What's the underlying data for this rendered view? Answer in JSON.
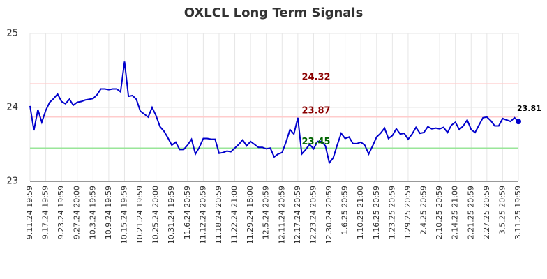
{
  "chart_data": {
    "type": "line",
    "title": "OXLCL Long Term Signals",
    "categories": [
      "9.11.24 19:59",
      null,
      null,
      null,
      "9.17.24 19:59",
      null,
      null,
      null,
      "9.23.24 19:59",
      null,
      null,
      null,
      "9.27.24 20:00",
      null,
      null,
      null,
      "10.3.24 19:59",
      null,
      null,
      null,
      "10.9.24 19:59",
      null,
      null,
      null,
      "10.15.24 19:59",
      null,
      null,
      null,
      "10.21.24 19:59",
      null,
      null,
      null,
      "10.25.24 20:00",
      null,
      null,
      null,
      "10.31.24 19:59",
      null,
      null,
      null,
      "11.6.24 20:59",
      null,
      null,
      null,
      "11.12.24 20:59",
      null,
      null,
      null,
      "11.18.24 20:59",
      null,
      null,
      null,
      "11.22.24 21:00",
      null,
      null,
      null,
      "11.29.24 18:00",
      null,
      null,
      null,
      "12.5.24 20:59",
      null,
      null,
      null,
      "12.11.24 20:59",
      null,
      null,
      null,
      "12.17.24 20:59",
      null,
      null,
      null,
      "12.23.24 20:59",
      null,
      null,
      null,
      "12.30.24 20:59",
      null,
      null,
      null,
      "1.6.25 20:59",
      null,
      null,
      null,
      "1.10.25 21:00",
      null,
      null,
      null,
      "1.16.25 20:59",
      null,
      null,
      null,
      "1.23.25 20:59",
      null,
      null,
      null,
      "1.29.25 20:59",
      null,
      null,
      null,
      "2.4.25 20:59",
      null,
      null,
      null,
      "2.10.25 20:59",
      null,
      null,
      null,
      "2.14.25 21:00",
      null,
      null,
      null,
      "2.21.25 20:59",
      null,
      null,
      null,
      "2.27.25 20:59",
      null,
      null,
      null,
      "3.5.25 20:59",
      null,
      null,
      null,
      "3.11.25 19:59"
    ],
    "series": [
      {
        "color": "#0000cc",
        "values": [
          24.02,
          23.69,
          23.97,
          23.8,
          23.96,
          24.07,
          24.12,
          24.18,
          24.08,
          24.05,
          24.11,
          24.03,
          24.07,
          24.08,
          24.1,
          24.11,
          24.12,
          24.17,
          24.25,
          24.25,
          24.24,
          24.25,
          24.25,
          24.21,
          24.62,
          24.15,
          24.16,
          24.11,
          23.95,
          23.91,
          23.87,
          24.0,
          23.89,
          23.74,
          23.68,
          23.59,
          23.49,
          23.53,
          23.43,
          23.43,
          23.49,
          23.57,
          23.37,
          23.46,
          23.58,
          23.58,
          23.57,
          23.57,
          23.38,
          23.39,
          23.41,
          23.4,
          23.45,
          23.5,
          23.56,
          23.48,
          23.54,
          23.5,
          23.46,
          23.46,
          23.44,
          23.45,
          23.33,
          23.37,
          23.39,
          23.53,
          23.7,
          23.64,
          23.86,
          23.37,
          23.43,
          23.5,
          23.44,
          23.54,
          23.54,
          23.48,
          23.25,
          23.32,
          23.49,
          23.65,
          23.58,
          23.6,
          23.51,
          23.51,
          23.53,
          23.49,
          23.37,
          23.48,
          23.6,
          23.65,
          23.72,
          23.58,
          23.62,
          23.71,
          23.64,
          23.65,
          23.57,
          23.64,
          23.73,
          23.65,
          23.66,
          23.74,
          23.71,
          23.72,
          23.71,
          23.73,
          23.66,
          23.76,
          23.8,
          23.7,
          23.75,
          23.83,
          23.7,
          23.66,
          23.76,
          23.86,
          23.87,
          23.82,
          23.75,
          23.75,
          23.85,
          23.83,
          23.81,
          23.86,
          23.81
        ]
      }
    ],
    "ylim": [
      23,
      25
    ],
    "yticks": [
      23,
      24,
      25
    ],
    "grid": true,
    "hlines": [
      {
        "value": 24.32,
        "color": "#ffcccc",
        "label_color": "#8b0000"
      },
      {
        "value": 23.87,
        "color": "#ffcccc",
        "label_color": "#8b0000"
      },
      {
        "value": 23.45,
        "color": "#99e699",
        "label_color": "#006400"
      }
    ]
  }
}
